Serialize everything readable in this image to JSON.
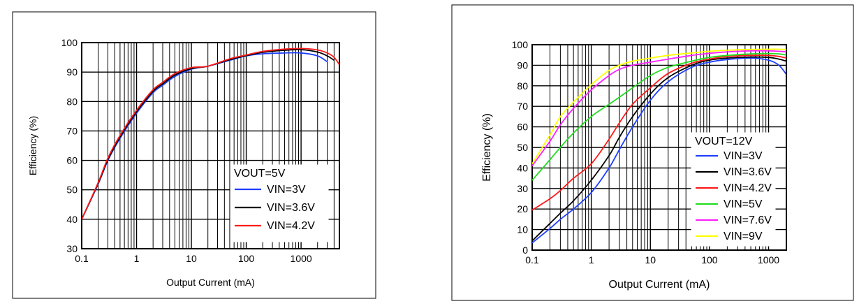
{
  "chart_data": [
    {
      "type": "line",
      "title": "",
      "xlabel": "Output Current (mA)",
      "ylabel": "Efficiency (%)",
      "x_scale": "log",
      "xlim": [
        0.1,
        5000
      ],
      "ylim": [
        30,
        100
      ],
      "x_ticks": [
        0.1,
        1,
        10,
        100,
        1000
      ],
      "x_tick_labels": [
        "0.1",
        "1",
        "10",
        "100",
        "1000"
      ],
      "y_ticks": [
        30,
        40,
        50,
        60,
        70,
        80,
        90,
        100
      ],
      "y_tick_labels": [
        "30",
        "40",
        "50",
        "60",
        "70",
        "80",
        "90",
        "100"
      ],
      "grid": true,
      "legend_title": "VOUT=5V",
      "legend_position": "bottom-right",
      "series": [
        {
          "name": "VIN=3V",
          "color": "#1f3fff",
          "x": [
            0.1,
            0.2,
            0.3,
            0.5,
            1,
            2,
            3,
            5,
            10,
            20,
            50,
            100,
            200,
            500,
            1000,
            2000,
            3000
          ],
          "y": [
            40,
            52,
            60,
            67.5,
            76,
            83,
            85.5,
            88.5,
            91,
            92,
            94,
            95.5,
            96.2,
            96.5,
            96.5,
            95.5,
            93.5
          ]
        },
        {
          "name": "VIN=3.6V",
          "color": "#000000",
          "x": [
            0.1,
            0.2,
            0.3,
            0.5,
            1,
            2,
            3,
            5,
            10,
            20,
            50,
            100,
            200,
            500,
            1000,
            2000,
            3000,
            4000
          ],
          "y": [
            40,
            52.2,
            60.3,
            68,
            76.5,
            83.5,
            86,
            89,
            91.2,
            92,
            94.2,
            95.6,
            96.7,
            97.4,
            97.6,
            96.8,
            95.5,
            94
          ]
        },
        {
          "name": "VIN=4.2V",
          "color": "#ff1a1a",
          "x": [
            0.1,
            0.2,
            0.3,
            0.5,
            1,
            2,
            3,
            5,
            10,
            20,
            50,
            100,
            200,
            500,
            1000,
            2000,
            3000,
            4000,
            5000
          ],
          "y": [
            40,
            52.5,
            60.8,
            68.5,
            77,
            84,
            86.5,
            89.5,
            91.5,
            92,
            94.5,
            95.8,
            97,
            97.8,
            98,
            97.5,
            96.5,
            95,
            92.5
          ]
        }
      ]
    },
    {
      "type": "line",
      "title": "",
      "xlabel": "Output Current (mA)",
      "ylabel": "Efficiency (%)",
      "x_scale": "log",
      "xlim": [
        0.1,
        2000
      ],
      "ylim": [
        0,
        100
      ],
      "x_ticks": [
        0.1,
        1,
        10,
        100,
        1000
      ],
      "x_tick_labels": [
        "0.1",
        "1",
        "10",
        "100",
        "1000"
      ],
      "y_ticks": [
        0,
        10,
        20,
        30,
        40,
        50,
        60,
        70,
        80,
        90,
        100
      ],
      "y_tick_labels": [
        "0",
        "10",
        "20",
        "30",
        "40",
        "50",
        "60",
        "70",
        "80",
        "90",
        "100"
      ],
      "grid": true,
      "legend_title": "VOUT=12V",
      "legend_position": "bottom-right",
      "series": [
        {
          "name": "VIN=3V",
          "color": "#1f3fff",
          "x": [
            0.1,
            0.2,
            0.3,
            0.5,
            1,
            2,
            3,
            5,
            10,
            20,
            50,
            100,
            200,
            500,
            1000,
            1500,
            2000
          ],
          "y": [
            3.5,
            10.5,
            15,
            20,
            28,
            40,
            49,
            60,
            73,
            82,
            89,
            91.5,
            92.8,
            93.5,
            92.5,
            90,
            85.5
          ]
        },
        {
          "name": "VIN=3.6V",
          "color": "#000000",
          "x": [
            0.1,
            0.2,
            0.3,
            0.5,
            1,
            2,
            3,
            5,
            10,
            20,
            50,
            100,
            200,
            500,
            1000,
            1500,
            2000
          ],
          "y": [
            4.5,
            13,
            18,
            24,
            34,
            46,
            55,
            65,
            76,
            84,
            90,
            92.5,
            93.5,
            94,
            93.8,
            93,
            92
          ]
        },
        {
          "name": "VIN=4.2V",
          "color": "#ff1a1a",
          "x": [
            0.1,
            0.2,
            0.3,
            0.5,
            1,
            2,
            3,
            5,
            10,
            20,
            50,
            100,
            200,
            500,
            1000,
            1500,
            2000
          ],
          "y": [
            19.5,
            25,
            29,
            35,
            42,
            54,
            62,
            71,
            79,
            86,
            91,
            93,
            94.3,
            94.8,
            94.8,
            94.3,
            93.5
          ]
        },
        {
          "name": "VIN=5V",
          "color": "#22dd22",
          "x": [
            0.1,
            0.2,
            0.3,
            0.5,
            1,
            2,
            3,
            5,
            10,
            20,
            50,
            100,
            200,
            500,
            1000,
            1500,
            2000
          ],
          "y": [
            34,
            44,
            50,
            57,
            65,
            71,
            74.5,
            79,
            85,
            89,
            92,
            93.8,
            94.8,
            95.5,
            95.7,
            95.5,
            95
          ]
        },
        {
          "name": "VIN=7.6V",
          "color": "#ff22ff",
          "x": [
            0.1,
            0.2,
            0.3,
            0.5,
            1,
            2,
            3,
            5,
            10,
            20,
            50,
            100,
            200,
            500,
            1000,
            1500,
            2000
          ],
          "y": [
            41,
            53,
            61,
            69,
            78,
            85,
            88,
            90,
            91.5,
            93,
            94.8,
            95.8,
            96.5,
            97,
            97,
            96.8,
            96.5
          ]
        },
        {
          "name": "VIN=9V",
          "color": "#ffff00",
          "x": [
            0.1,
            0.2,
            0.3,
            0.5,
            1,
            2,
            3,
            5,
            10,
            20,
            50,
            100,
            200,
            500,
            1000,
            1500,
            2000
          ],
          "y": [
            42,
            56,
            65,
            72,
            80.5,
            87.5,
            90,
            92,
            93.5,
            94.8,
            96,
            96.8,
            97.3,
            97.7,
            97.8,
            97.8,
            97.7
          ]
        }
      ]
    }
  ]
}
